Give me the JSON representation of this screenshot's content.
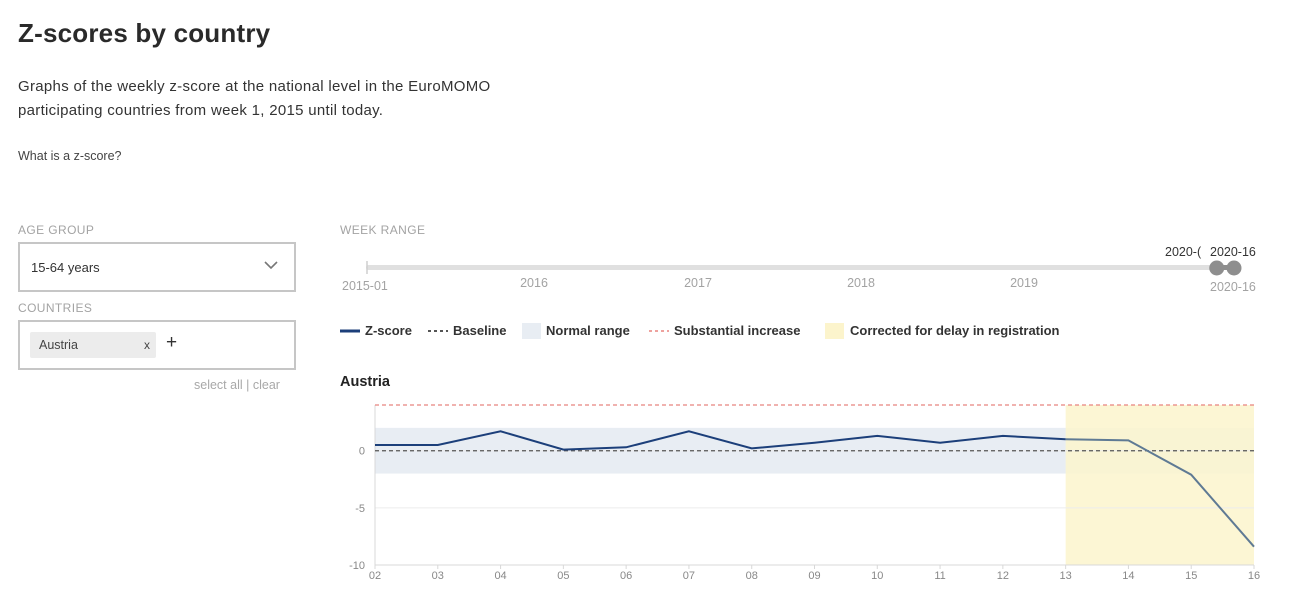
{
  "page": {
    "title": "Z-scores by country",
    "intro": "Graphs of the weekly z-score at the national level in the EuroMOMO participating countries from week 1, 2015 until today.",
    "zscore_link": "What is a z-score?"
  },
  "filters": {
    "age_group_label": "AGE GROUP",
    "age_group_value": "15-64 years",
    "countries_label": "COUNTRIES",
    "country_tag": "Austria",
    "tag_remove": "x",
    "add_symbol": "+",
    "select_all": "select all",
    "separator": "|",
    "clear": "clear"
  },
  "week_range": {
    "label": "WEEK RANGE",
    "start_label": "2015-01",
    "end_label": "2020-16",
    "years": [
      "2016",
      "2017",
      "2018",
      "2019"
    ],
    "handle_left_label": "2020-(",
    "handle_right_label": "2020-16",
    "selected_start_fraction": 0.9801,
    "selected_end_fraction": 1.0
  },
  "legend": {
    "zscore": "Z-score",
    "baseline": "Baseline",
    "normal_range": "Normal range",
    "substantial_increase": "Substantial increase",
    "corrected": "Corrected for delay in registration"
  },
  "colors": {
    "zscore_line": "#1c3f7a",
    "zscore_corrected_line": "#5f7a94",
    "baseline": "#555555",
    "normal_range": "#e8edf3",
    "substantial_increase": "#e8847f",
    "corrected_area": "#fcf4cc",
    "slider_track": "#e0e0e0",
    "slider_handle": "#8e8e8e"
  },
  "chart_title": "Austria",
  "chart_data": {
    "type": "line",
    "title": "Austria",
    "x": [
      "02",
      "03",
      "04",
      "05",
      "06",
      "07",
      "08",
      "09",
      "10",
      "11",
      "12",
      "13",
      "14",
      "15",
      "16"
    ],
    "series": [
      {
        "name": "Z-score",
        "values": [
          0.5,
          0.5,
          1.7,
          0.1,
          0.3,
          1.7,
          0.2,
          0.7,
          1.3,
          0.7,
          1.3,
          1.0,
          0.9,
          -2.1,
          -8.4
        ]
      }
    ],
    "baseline": 0,
    "normal_range": [
      -2,
      2
    ],
    "substantial_increase": 4,
    "corrected_from_week": "13",
    "yticks": [
      0,
      -5,
      -10
    ],
    "ylim": [
      -10,
      4
    ]
  }
}
